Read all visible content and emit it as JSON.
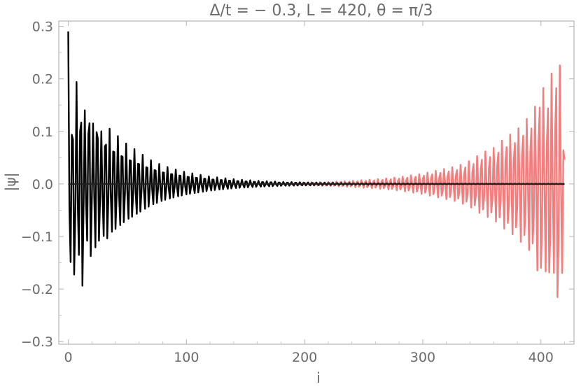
{
  "chart_data": {
    "type": "line",
    "title": "Δ/t = − 0.3, L = 420, θ = π/3",
    "xlabel": "i",
    "ylabel": "|ψ|",
    "xlim": [
      -8,
      428
    ],
    "ylim": [
      -0.305,
      0.31
    ],
    "xticks": [
      0,
      100,
      200,
      300,
      400
    ],
    "xtick_labels": [
      "0",
      "100",
      "200",
      "300",
      "400"
    ],
    "yticks": [
      -0.3,
      -0.2,
      -0.1,
      0.0,
      0.1,
      0.2,
      0.3
    ],
    "ytick_labels": [
      "−0.3",
      "−0.2",
      "−0.1",
      "0.0",
      "0.1",
      "0.2",
      "0.3"
    ],
    "grid": false,
    "series": [
      {
        "color": "#000000",
        "description": "left-localized edge mode, oscillating with decaying envelope from i=0",
        "x": [
          0,
          2,
          4,
          6,
          8,
          10,
          12,
          14,
          16,
          18,
          20,
          22,
          24,
          26,
          28,
          30,
          32,
          35,
          40,
          45,
          50,
          55,
          60,
          70,
          80,
          90,
          100,
          120,
          140,
          160,
          180,
          200,
          240,
          300,
          360,
          420
        ],
        "envelope": [
          0.29,
          0.165,
          0.135,
          0.248,
          0.14,
          0.16,
          0.215,
          0.14,
          0.12,
          0.185,
          0.12,
          0.11,
          0.158,
          0.12,
          0.1,
          0.11,
          0.12,
          0.105,
          0.095,
          0.085,
          0.075,
          0.068,
          0.06,
          0.045,
          0.035,
          0.028,
          0.022,
          0.014,
          0.009,
          0.006,
          0.004,
          0.003,
          0.0015,
          0.0006,
          0.0003,
          0.0002
        ]
      },
      {
        "color": "#f47c7c",
        "description": "right-localized edge mode, oscillating with growing envelope toward i=420",
        "x": [
          0,
          60,
          120,
          180,
          220,
          240,
          260,
          280,
          300,
          320,
          330,
          340,
          350,
          360,
          370,
          380,
          385,
          390,
          395,
          400,
          405,
          408,
          411,
          414,
          417,
          419,
          420
        ],
        "envelope": [
          0.0002,
          0.0004,
          0.001,
          0.002,
          0.004,
          0.006,
          0.009,
          0.013,
          0.02,
          0.03,
          0.035,
          0.045,
          0.06,
          0.07,
          0.09,
          0.105,
          0.12,
          0.13,
          0.15,
          0.2,
          0.165,
          0.234,
          0.175,
          0.27,
          0.21,
          0.14,
          0.06
        ]
      },
      {
        "color": "#222222",
        "description": "flat zero line across all sites",
        "x": [
          0,
          420
        ],
        "values": [
          0.0,
          0.0
        ]
      }
    ],
    "oscillation_period_sites": 3.5
  }
}
